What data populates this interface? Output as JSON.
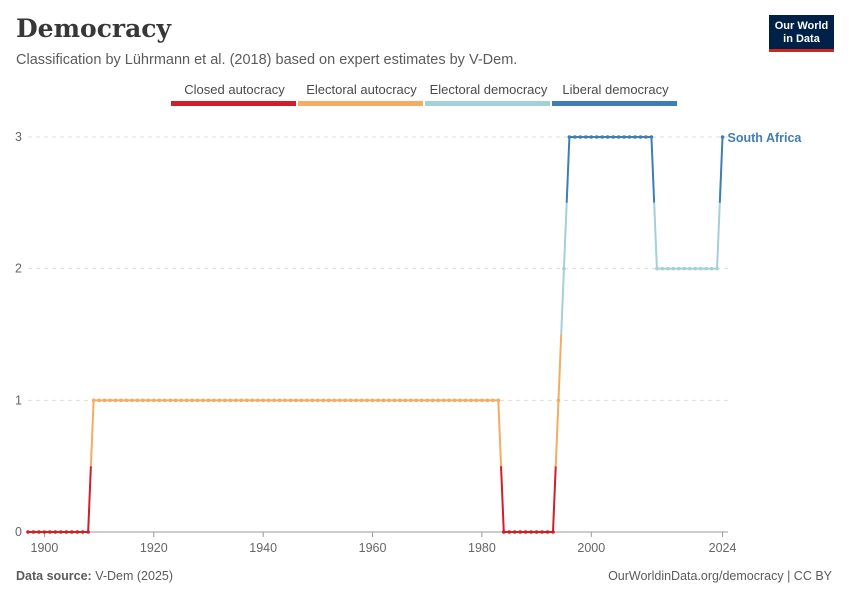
{
  "header": {
    "title": "Democracy",
    "subtitle": "Classification by Lührmann et al. (2018) based on expert estimates by V-Dem."
  },
  "logo": {
    "line1": "Our World",
    "line2": "in Data"
  },
  "footer": {
    "source_label": "Data source:",
    "source_value": "V-Dem (2025)",
    "url": "OurWorldinData.org/democracy | CC BY"
  },
  "chart_data": {
    "type": "line",
    "title": "Democracy",
    "xlabel": "",
    "ylabel": "",
    "xlim": [
      1897,
      2025
    ],
    "ylim": [
      0,
      3
    ],
    "x_ticks": [
      1900,
      1920,
      1940,
      1960,
      1980,
      2000,
      2024
    ],
    "y_ticks": [
      0,
      1,
      2,
      3
    ],
    "grid": "horizontal dashed",
    "legend_position": "top",
    "legend": [
      {
        "name": "Closed autocracy",
        "value": 0,
        "color": "#d01f26"
      },
      {
        "name": "Electoral autocracy",
        "value": 1,
        "color": "#f2ad62"
      },
      {
        "name": "Electoral democracy",
        "value": 2,
        "color": "#a3d0d9"
      },
      {
        "name": "Liberal democracy",
        "value": 3,
        "color": "#3d7fb5"
      }
    ],
    "series": [
      {
        "name": "South Africa",
        "color": "#3d7fb5",
        "segments": [
          {
            "from": 1897,
            "to": 1908,
            "value": 0
          },
          {
            "from": 1909,
            "to": 1983,
            "value": 1
          },
          {
            "from": 1984,
            "to": 1993,
            "value": 0
          },
          {
            "from": 1994,
            "to": 1994,
            "value": 1
          },
          {
            "from": 1995,
            "to": 1995,
            "value": 2
          },
          {
            "from": 1996,
            "to": 2011,
            "value": 3
          },
          {
            "from": 2012,
            "to": 2023,
            "value": 2
          },
          {
            "from": 2024,
            "to": 2024,
            "value": 3
          }
        ]
      }
    ]
  }
}
